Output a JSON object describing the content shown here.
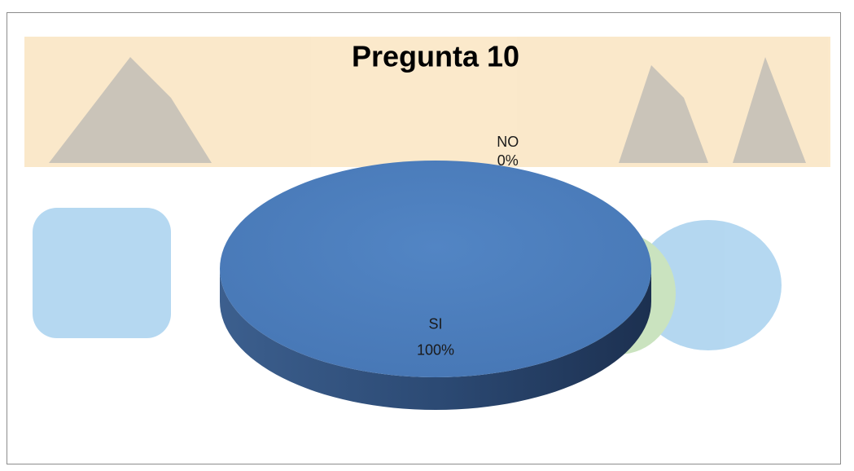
{
  "chart_data": {
    "type": "pie",
    "title": "Pregunta 10",
    "categories": [
      "SI",
      "NO"
    ],
    "values": [
      100,
      0
    ],
    "value_labels": [
      "100%",
      "0%"
    ],
    "colors": [
      "#4f81bd",
      "#c0504d"
    ]
  }
}
